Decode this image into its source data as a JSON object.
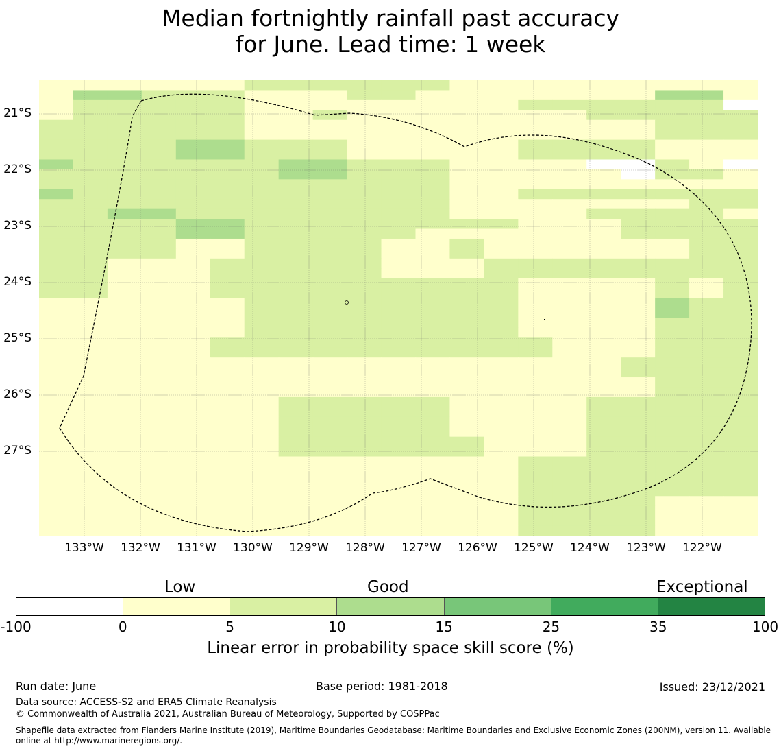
{
  "title": {
    "line1": "Median fortnightly rainfall past accuracy",
    "line2": "for June. Lead time: 1 week"
  },
  "map": {
    "lat_labels": [
      "21°S",
      "22°S",
      "23°S",
      "24°S",
      "25°S",
      "26°S",
      "27°S"
    ],
    "lon_labels": [
      "133°W",
      "132°W",
      "131°W",
      "130°W",
      "129°W",
      "128°W",
      "127°W",
      "126°W",
      "125°W",
      "124°W",
      "123°W",
      "122°W"
    ],
    "legend_colors": [
      "#ffffff",
      "#ffffcc",
      "#d9f0a3",
      "#addd8e",
      "#78c679",
      "#41ab5d",
      "#238443"
    ],
    "grid": [
      "111111222222111111111",
      "133222111221111111331",
      "122222111111112222220",
      "122222112111111122222",
      "222222111111111111222",
      "222222111111111111222",
      "222233222111112222111",
      "222233222111112222111",
      "322222233222111100210",
      "222222233222111110221",
      "222222222222111111111",
      "322222222222112222222",
      "222222222222111111122",
      "223322222222111122221",
      "222233222222221112222",
      "222233222221111112222",
      "222211222211211111122",
      "222211222211211111122",
      "221112222211122222222",
      "221112222211122222222",
      "221112222222221111212",
      "221112222222221111212",
      "111111222222221111322",
      "111111222222221111322",
      "111111222222221111222",
      "111111222222221111222",
      "111112222222222111222",
      "111112222222222111222",
      "111111111111111112222",
      "111111111111111112222",
      "111111111111111111222",
      "111111111111111111222",
      "111111122222111122222",
      "111111122222111122222",
      "111111122222111122222",
      "111111122222111122222",
      "111111122222211122222",
      "111111122222211122222",
      "111111111111112222222",
      "111111111111112222222",
      "111111111111112222222",
      "111111111111112222222",
      "111111111111112222111",
      "111111111111112222111",
      "111111111111112222111",
      "111111111111112222111"
    ]
  },
  "legend": {
    "categories": [
      "Low",
      "Good",
      "Exceptional"
    ],
    "ticks": [
      "-100",
      "0",
      "5",
      "10",
      "15",
      "25",
      "35",
      "100"
    ],
    "axis_label": "Linear error in probability space skill score (%)"
  },
  "footer": {
    "run_date": "Run date: June",
    "base_period": "Base period: 1981-2018",
    "issued": "Issued: 23/12/2021",
    "data_source": "Data source: ACCESS-S2 and ERA5 Climate Reanalysis",
    "copyright": "© Commonwealth of Australia 2021, Australian Bureau of Meteorology, Supported by COSPPac",
    "shapefile_line1": "Shapefile data extracted from Flanders Marine Institute (2019), Maritime Boundaries Geodatabase: Maritime Boundaries and Exclusive Economic Zones (200NM), version 11. Available",
    "shapefile_line2": "online at http://www.marineregions.org/."
  }
}
